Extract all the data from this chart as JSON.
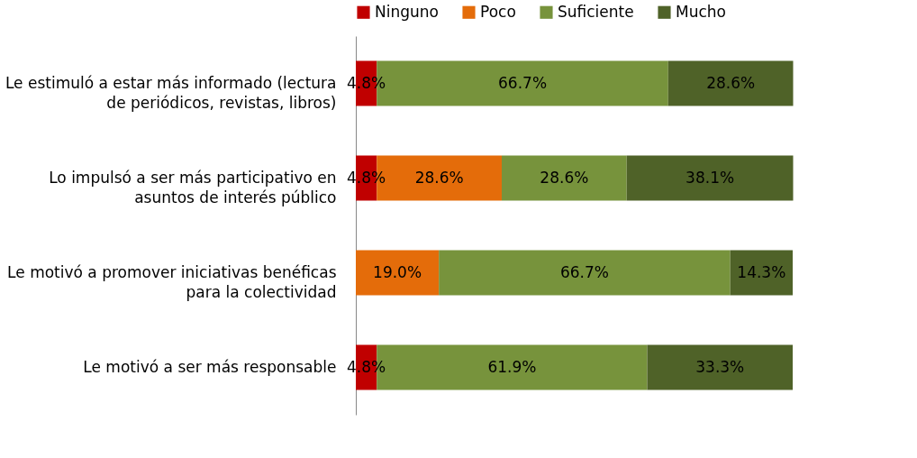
{
  "chart_data": {
    "type": "bar",
    "orientation": "horizontal",
    "stacked": true,
    "categories": [
      "Le estimuló a estar más informado (lectura de periódicos, revistas, libros)",
      "Lo impulsó a ser más participativo en asuntos de interés público",
      "Le motivó a promover iniciativas benéficas para la colectividad",
      "Le motivó a ser más responsable"
    ],
    "series": [
      {
        "name": "Ninguno",
        "color": "#c00000",
        "values": [
          4.8,
          4.8,
          null,
          4.8
        ],
        "value_labels": [
          "4.8%",
          "4.8%",
          null,
          "4.8%"
        ]
      },
      {
        "name": "Poco",
        "color": "#e46c0a",
        "values": [
          null,
          28.6,
          19.0,
          null
        ],
        "value_labels": [
          null,
          "28.6%",
          "19.0%",
          null
        ]
      },
      {
        "name": "Suficiente",
        "color": "#77933c",
        "values": [
          66.7,
          28.6,
          66.7,
          61.9
        ],
        "value_labels": [
          "66.7%",
          "28.6%",
          "66.7%",
          "61.9%"
        ]
      },
      {
        "name": "Mucho",
        "color": "#4f6228",
        "values": [
          28.6,
          38.1,
          14.3,
          33.3
        ],
        "value_labels": [
          "28.6%",
          "38.1%",
          "14.3%",
          "33.3%"
        ]
      }
    ],
    "xlim": [
      0,
      100
    ],
    "tick_labels": "y",
    "grid": false,
    "legend": "top"
  }
}
